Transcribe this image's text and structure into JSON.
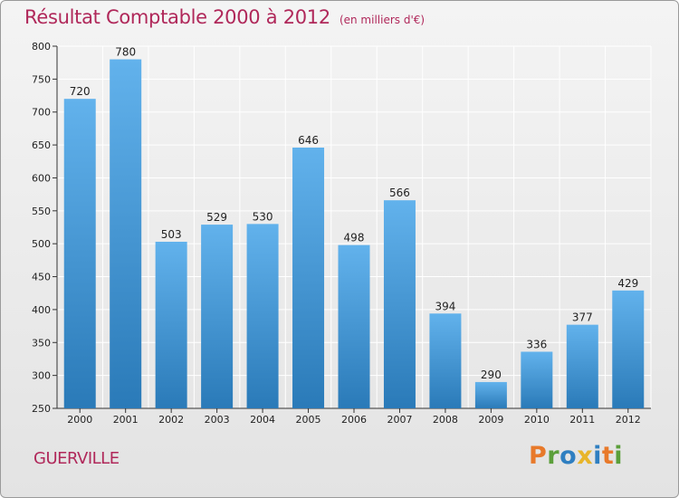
{
  "title": "Résultat Comptable 2000 à 2012",
  "subtitle": "(en milliers d'€)",
  "city": "GUERVILLE",
  "logo": {
    "text": "Proxiti",
    "letters": [
      {
        "char": "P",
        "color": "#e8792a"
      },
      {
        "char": "r",
        "color": "#5b9f3a"
      },
      {
        "char": "o",
        "color": "#2f7fc1"
      },
      {
        "char": "x",
        "color": "#e8b52a"
      },
      {
        "char": "i",
        "color": "#2f7fc1"
      },
      {
        "char": "t",
        "color": "#e8792a"
      },
      {
        "char": "i",
        "color": "#5b9f3a"
      }
    ]
  },
  "colors": {
    "title": "#b0285a",
    "bar_top": "#62b2ec",
    "bar_bottom": "#2a7ab8"
  },
  "chart_data": {
    "type": "bar",
    "categories": [
      "2000",
      "2001",
      "2002",
      "2003",
      "2004",
      "2005",
      "2006",
      "2007",
      "2008",
      "2009",
      "2010",
      "2011",
      "2012"
    ],
    "values": [
      720,
      780,
      503,
      529,
      530,
      646,
      498,
      566,
      394,
      290,
      336,
      377,
      429
    ],
    "title": "Résultat Comptable 2000 à 2012",
    "subtitle": "(en milliers d'€)",
    "ylim": [
      250,
      800
    ],
    "yticks": [
      250,
      300,
      350,
      400,
      450,
      500,
      550,
      600,
      650,
      700,
      750,
      800
    ],
    "grid": true
  }
}
